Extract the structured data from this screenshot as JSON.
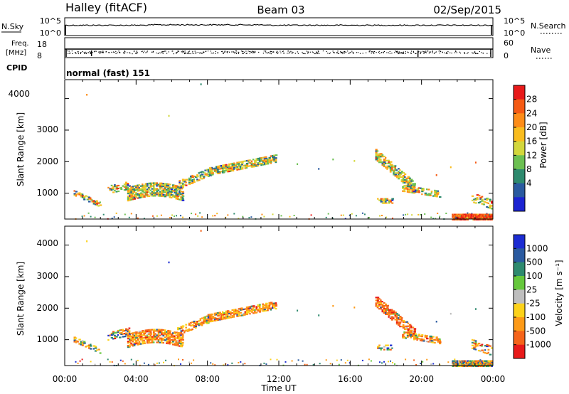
{
  "header": {
    "radar": "Halley (fitACF)",
    "beam": "Beam 03",
    "date": "02/Sep/2015"
  },
  "noise_panel": {
    "left_label": "N.Sky",
    "right_label": "N.Search",
    "tick_left": [
      "10^5",
      "10^0"
    ],
    "tick_right": [
      "10^5",
      "10^0"
    ]
  },
  "freq_panel": {
    "left_label_1": "Freq.",
    "left_label_2": "[MHz]",
    "right_label": "Nave",
    "tick_left": [
      "18",
      "8"
    ],
    "tick_right": [
      "60",
      "0"
    ]
  },
  "cpid_panel": {
    "label": "CPID",
    "mode": "normal (fast) 151"
  },
  "chart_data": [
    {
      "type": "heatmap",
      "parameter": "Power",
      "ylabel": "Slant Range [km]",
      "yticks": [
        "4000",
        "3000",
        "2000",
        "1000"
      ],
      "colorbar_label": "Power [dB]",
      "colorbar_ticks": [
        "28",
        "24",
        "20",
        "16",
        "12",
        "8",
        "4"
      ],
      "colorbar_colors": [
        "#e81a1a",
        "#f55a14",
        "#fd8c18",
        "#f9bc1e",
        "#d3d73c",
        "#6cc052",
        "#2e8a6e",
        "#2a5aa0",
        "#1c24d2"
      ],
      "xlim": [
        "00:00",
        "24:00"
      ],
      "ylim_km": [
        180,
        4600
      ],
      "echo_regions": [
        {
          "t_start": 0.4,
          "t_end": 2.2,
          "range_start": 600,
          "range_end": 1150,
          "level": "mixed"
        },
        {
          "t_start": 2.3,
          "t_end": 7.8,
          "range_start": 700,
          "range_end": 1600,
          "level": "mixed"
        },
        {
          "t_start": 7.8,
          "t_end": 11.8,
          "range_start": 1400,
          "range_end": 2200,
          "level": "mixed"
        },
        {
          "t_start": 17.4,
          "t_end": 21.3,
          "range_start": 900,
          "range_end": 2500,
          "level": "mixed"
        },
        {
          "t_start": 21.7,
          "t_end": 24.0,
          "range_start": 180,
          "range_end": 400,
          "level": "high"
        }
      ]
    },
    {
      "type": "heatmap",
      "parameter": "Velocity",
      "ylabel": "Slant Range [km]",
      "yticks": [
        "4000",
        "3000",
        "2000",
        "1000"
      ],
      "colorbar_label": "Velocity [m s⁻¹]",
      "colorbar_ticks": [
        "1000",
        "500",
        "100",
        "25",
        "-25",
        "-100",
        "-500",
        "-1000"
      ],
      "colorbar_colors": [
        "#1c2cd2",
        "#2a5aa0",
        "#2e8a6e",
        "#66c83c",
        "#bebebe",
        "#fcd21a",
        "#fd9a18",
        "#f5641a",
        "#e81a1a"
      ],
      "xlim": [
        "00:00",
        "24:00"
      ],
      "ylim_km": [
        180,
        4600
      ],
      "echo_regions": [
        {
          "t_start": 0.4,
          "t_end": 2.2,
          "range_start": 600,
          "range_end": 1150,
          "level": "mixed"
        },
        {
          "t_start": 2.3,
          "t_end": 7.8,
          "range_start": 700,
          "range_end": 1600,
          "level": "negative"
        },
        {
          "t_start": 7.8,
          "t_end": 11.8,
          "range_start": 1400,
          "range_end": 2200,
          "level": "negative"
        },
        {
          "t_start": 17.4,
          "t_end": 21.3,
          "range_start": 900,
          "range_end": 2500,
          "level": "strong negative"
        },
        {
          "t_start": 21.7,
          "t_end": 24.0,
          "range_start": 180,
          "range_end": 400,
          "level": "negative"
        }
      ]
    }
  ],
  "time_axis": {
    "ticks": [
      "00:00",
      "04:00",
      "08:00",
      "12:00",
      "16:00",
      "20:00",
      "00:00"
    ],
    "label": "Time UT"
  }
}
